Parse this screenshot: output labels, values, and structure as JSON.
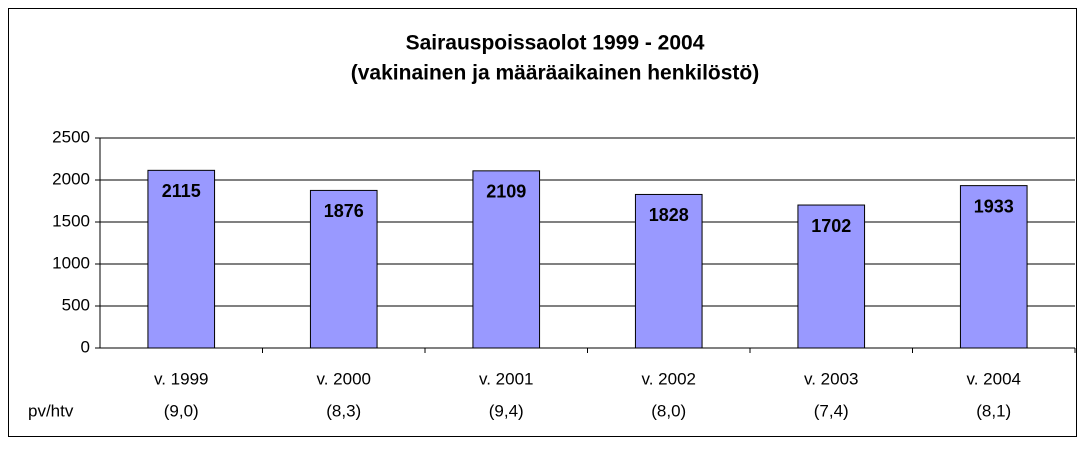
{
  "chart_data": {
    "type": "bar",
    "title": "Sairauspoissaolot 1999 - 2004",
    "subtitle": "(vakinainen ja määräaikainen henkilöstö)",
    "categories": [
      "v. 1999",
      "v. 2000",
      "v. 2001",
      "v. 2002",
      "v. 2003",
      "v. 2004"
    ],
    "category_notes": [
      "(9,0)",
      "(8,3)",
      "(9,4)",
      "(8,0)",
      "(7,4)",
      "(8,1)"
    ],
    "row_label": "pv/htv",
    "values": [
      2115,
      1876,
      2109,
      1828,
      1702,
      1933
    ],
    "color": "#9999ff",
    "ylim": [
      0,
      2500
    ],
    "yticks": [
      0,
      500,
      1000,
      1500,
      2000,
      2500
    ],
    "grid": true
  }
}
